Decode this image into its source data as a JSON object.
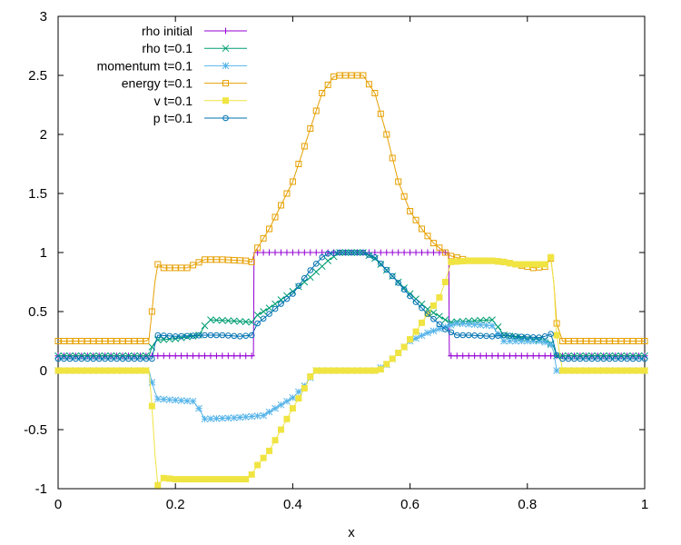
{
  "chart_data": {
    "type": "line",
    "title": "",
    "xlabel": "x",
    "ylabel": "",
    "xlim": [
      0,
      1
    ],
    "ylim": [
      -1,
      3
    ],
    "xticks": [
      "0",
      "0.2",
      "0.4",
      "0.6",
      "0.8",
      "1"
    ],
    "xtick_values": [
      0,
      0.2,
      0.4,
      0.6,
      0.8,
      1
    ],
    "yticks": [
      "-1",
      "-0.5",
      "0",
      "0.5",
      "1",
      "1.5",
      "2",
      "2.5",
      "3"
    ],
    "ytick_values": [
      -1,
      -0.5,
      0,
      0.5,
      1,
      1.5,
      2,
      2.5,
      3
    ],
    "grid": false,
    "legend_position": "top-left",
    "series": [
      {
        "name": "rho initial",
        "color": "#9400d3",
        "marker": "plus",
        "x": [
          0,
          0.155,
          0.156,
          0.333,
          0.334,
          0.666,
          0.667,
          0.845,
          0.846,
          1
        ],
        "y": [
          0.125,
          0.125,
          0.125,
          0.125,
          1.0,
          1.0,
          0.125,
          0.125,
          0.125,
          0.125
        ]
      },
      {
        "name": "rho t=0.1",
        "color": "#009e73",
        "marker": "cross",
        "x": [
          0,
          0.15,
          0.155,
          0.16,
          0.165,
          0.17,
          0.2,
          0.24,
          0.25,
          0.26,
          0.3,
          0.33,
          0.34,
          0.36,
          0.4,
          0.43,
          0.46,
          0.48,
          0.52,
          0.54,
          0.57,
          0.6,
          0.63,
          0.66,
          0.67,
          0.7,
          0.74,
          0.75,
          0.76,
          0.8,
          0.83,
          0.84,
          0.845,
          0.85,
          0.86,
          1
        ],
        "y": [
          0.125,
          0.125,
          0.125,
          0.2,
          0.24,
          0.26,
          0.27,
          0.3,
          0.38,
          0.43,
          0.42,
          0.41,
          0.47,
          0.53,
          0.67,
          0.79,
          0.93,
          1.0,
          1.0,
          0.95,
          0.8,
          0.65,
          0.52,
          0.43,
          0.41,
          0.42,
          0.43,
          0.37,
          0.3,
          0.27,
          0.26,
          0.23,
          0.2,
          0.125,
          0.125,
          0.125
        ]
      },
      {
        "name": "momentum t=0.1",
        "color": "#56b4e9",
        "marker": "star",
        "x": [
          0,
          0.155,
          0.16,
          0.165,
          0.17,
          0.2,
          0.23,
          0.24,
          0.25,
          0.3,
          0.35,
          0.4,
          0.42,
          0.43,
          0.44,
          0.46,
          0.5,
          0.54,
          0.56,
          0.58,
          0.6,
          0.63,
          0.66,
          0.68,
          0.71,
          0.74,
          0.75,
          0.76,
          0.79,
          0.82,
          0.83,
          0.84,
          0.845,
          0.85,
          0.86,
          1
        ],
        "y": [
          0,
          0,
          -0.1,
          -0.18,
          -0.24,
          -0.25,
          -0.26,
          -0.32,
          -0.41,
          -0.4,
          -0.38,
          -0.23,
          -0.13,
          -0.06,
          0,
          0,
          0,
          0,
          0.05,
          0.15,
          0.25,
          0.32,
          0.37,
          0.4,
          0.39,
          0.38,
          0.31,
          0.25,
          0.25,
          0.25,
          0.24,
          0.22,
          0.16,
          0,
          0,
          0
        ]
      },
      {
        "name": "energy t=0.1",
        "color": "#e69f00",
        "marker": "square-open",
        "x": [
          0,
          0.15,
          0.155,
          0.16,
          0.165,
          0.17,
          0.18,
          0.22,
          0.25,
          0.28,
          0.32,
          0.33,
          0.335,
          0.36,
          0.4,
          0.43,
          0.45,
          0.47,
          0.48,
          0.52,
          0.54,
          0.56,
          0.58,
          0.6,
          0.62,
          0.64,
          0.66,
          0.67,
          0.7,
          0.74,
          0.76,
          0.78,
          0.81,
          0.83,
          0.84,
          0.845,
          0.85,
          0.86,
          1
        ],
        "y": [
          0.25,
          0.25,
          0.27,
          0.5,
          0.75,
          0.9,
          0.87,
          0.87,
          0.94,
          0.94,
          0.93,
          0.92,
          1.0,
          1.2,
          1.6,
          2.05,
          2.35,
          2.49,
          2.5,
          2.5,
          2.35,
          2.0,
          1.6,
          1.35,
          1.2,
          1.08,
          1.0,
          0.97,
          0.93,
          0.93,
          0.92,
          0.9,
          0.87,
          0.88,
          0.95,
          0.75,
          0.4,
          0.25,
          0.25
        ]
      },
      {
        "name": "v t=0.1",
        "color": "#f0e442",
        "marker": "square-filled",
        "x": [
          0,
          0.155,
          0.16,
          0.165,
          0.17,
          0.18,
          0.2,
          0.25,
          0.32,
          0.33,
          0.34,
          0.36,
          0.38,
          0.4,
          0.42,
          0.43,
          0.44,
          0.46,
          0.54,
          0.55,
          0.57,
          0.59,
          0.61,
          0.63,
          0.65,
          0.66,
          0.67,
          0.7,
          0.74,
          0.76,
          0.78,
          0.83,
          0.84,
          0.845,
          0.85,
          0.86,
          1
        ],
        "y": [
          0,
          0,
          -0.3,
          -0.7,
          -0.97,
          -0.91,
          -0.92,
          -0.92,
          -0.92,
          -0.88,
          -0.8,
          -0.68,
          -0.5,
          -0.32,
          -0.15,
          -0.05,
          0,
          0,
          0,
          0.01,
          0.1,
          0.2,
          0.33,
          0.48,
          0.62,
          0.75,
          0.92,
          0.93,
          0.93,
          0.92,
          0.9,
          0.9,
          0.96,
          0.75,
          0.3,
          0,
          0
        ]
      },
      {
        "name": "p t=0.1",
        "color": "#0072b2",
        "marker": "circle-open",
        "x": [
          0,
          0.155,
          0.16,
          0.165,
          0.17,
          0.2,
          0.25,
          0.28,
          0.31,
          0.33,
          0.34,
          0.36,
          0.4,
          0.43,
          0.45,
          0.46,
          0.48,
          0.52,
          0.54,
          0.57,
          0.6,
          0.63,
          0.66,
          0.68,
          0.7,
          0.74,
          0.76,
          0.78,
          0.82,
          0.83,
          0.84,
          0.845,
          0.85,
          0.86,
          1
        ],
        "y": [
          0.1,
          0.1,
          0.1,
          0.22,
          0.3,
          0.29,
          0.3,
          0.3,
          0.29,
          0.3,
          0.4,
          0.48,
          0.65,
          0.85,
          0.96,
          0.99,
          1.0,
          1.0,
          0.96,
          0.8,
          0.63,
          0.48,
          0.35,
          0.3,
          0.3,
          0.29,
          0.3,
          0.29,
          0.28,
          0.29,
          0.31,
          0.23,
          0.13,
          0.1,
          0.1
        ]
      }
    ]
  }
}
